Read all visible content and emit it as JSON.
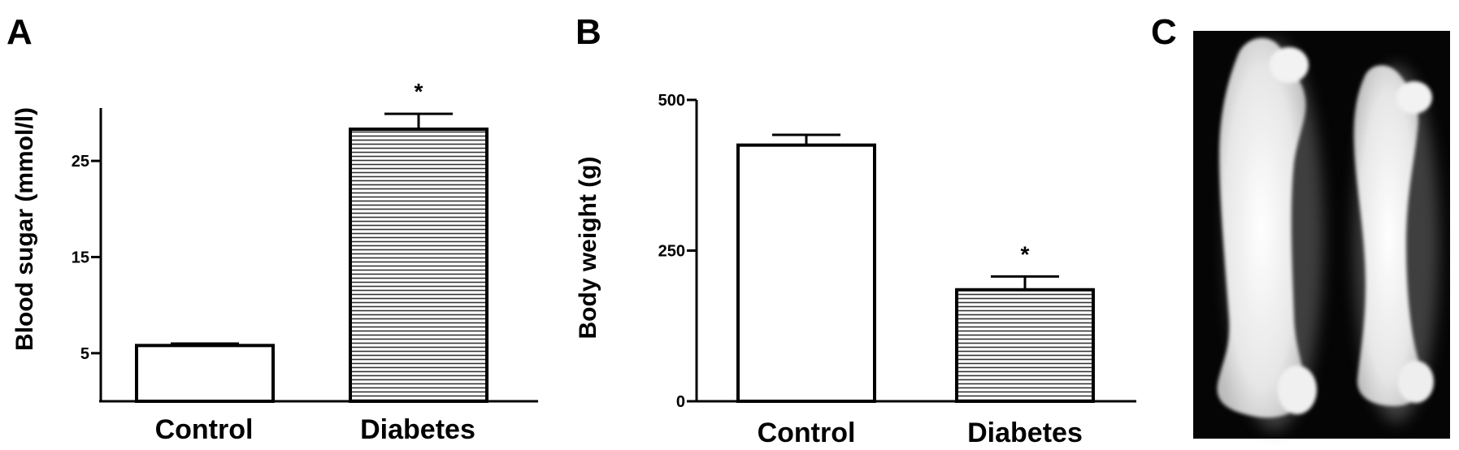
{
  "panels": [
    {
      "letter": "A"
    },
    {
      "letter": "B"
    },
    {
      "letter": "C"
    }
  ],
  "chart_data": [
    {
      "type": "bar",
      "panel": "A",
      "categories": [
        "Control",
        "Diabetes"
      ],
      "values": [
        5.8,
        28.3
      ],
      "errors": [
        0.2,
        1.6
      ],
      "fills": [
        "plain",
        "hatched"
      ],
      "ylabel": "Blood sugar (mmol/l)",
      "yticks": [
        5,
        15,
        25
      ],
      "ylim": [
        0,
        30.5
      ],
      "significance": [
        "",
        "*"
      ],
      "grid": false
    },
    {
      "type": "bar",
      "panel": "B",
      "categories": [
        "Control",
        "Diabetes"
      ],
      "values": [
        425,
        185
      ],
      "errors": [
        17,
        22
      ],
      "fills": [
        "plain",
        "hatched"
      ],
      "ylabel": "Body weight (g)",
      "yticks": [
        0,
        250,
        500
      ],
      "ylim": [
        0,
        500
      ],
      "significance": [
        "",
        "*"
      ],
      "grid": false
    }
  ],
  "xray": {
    "subject": "two femur bones, radiograph",
    "background": "#050505",
    "bone_color": "#e9e9e9"
  }
}
